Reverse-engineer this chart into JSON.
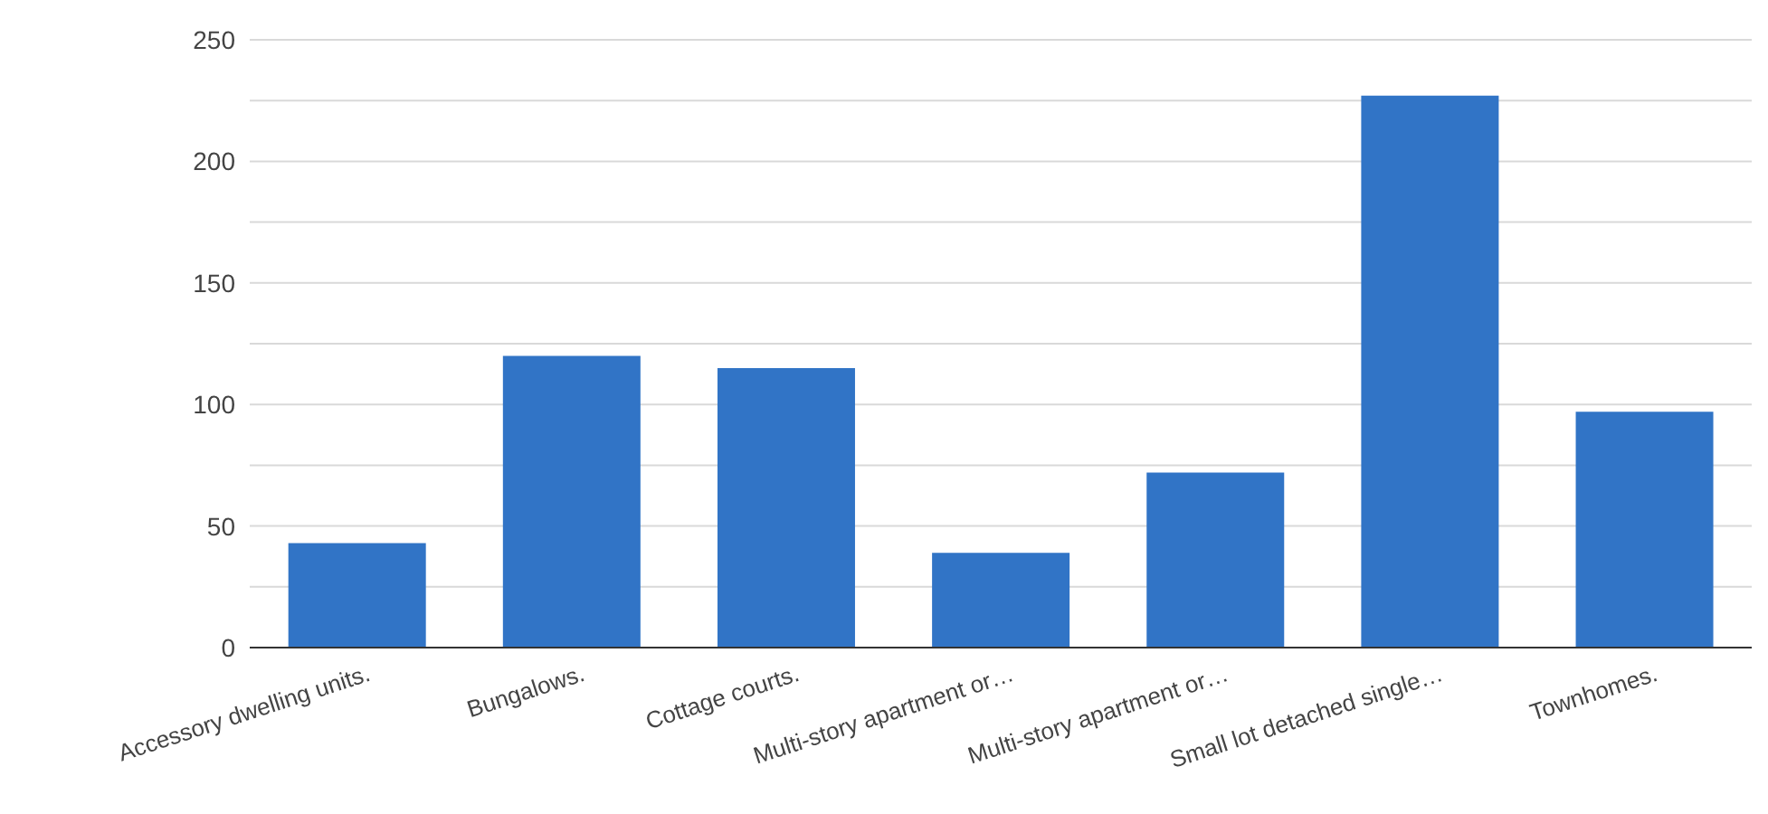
{
  "chart_data": {
    "type": "bar",
    "categories": [
      "Accessory dwelling units.",
      "Bungalows.",
      "Cottage courts.",
      "Multi-story apartment or…",
      "Multi-story apartment or…",
      "Small lot detached single…",
      "Townhomes."
    ],
    "values": [
      43,
      120,
      115,
      39,
      72,
      227,
      97
    ],
    "color": "#3174c6",
    "ylim": [
      0,
      250
    ],
    "yticks": [
      0,
      {
        "value": 25,
        "label": null
      },
      50,
      {
        "value": 75,
        "label": null
      },
      100,
      {
        "value": 125,
        "label": null
      },
      150,
      {
        "value": 175,
        "label": null
      },
      200,
      {
        "value": 225,
        "label": null
      },
      250
    ],
    "grid": "y"
  }
}
